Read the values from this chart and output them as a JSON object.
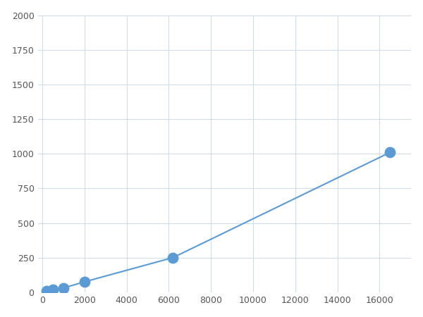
{
  "x": [
    200,
    500,
    1000,
    2000,
    6200,
    16500
  ],
  "y": [
    10,
    20,
    30,
    75,
    250,
    1010
  ],
  "line_color": "#5b9bd5",
  "marker_color": "#5b9bd5",
  "marker_size": 6,
  "xlim": [
    -200,
    17500
  ],
  "ylim": [
    0,
    2000
  ],
  "xticks": [
    0,
    2000,
    4000,
    6000,
    8000,
    10000,
    12000,
    14000,
    16000
  ],
  "yticks": [
    0,
    250,
    500,
    750,
    1000,
    1250,
    1500,
    1750,
    2000
  ],
  "grid_color": "#d0dce8",
  "bg_color": "#ffffff",
  "fig_bg_color": "#ffffff",
  "tick_labelsize": 9
}
